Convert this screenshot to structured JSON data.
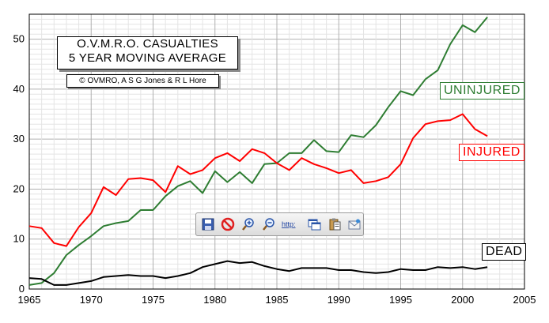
{
  "chart_data": {
    "type": "line",
    "title": "O.V.M.R.O. CASUALTIES",
    "subtitle": "5 YEAR MOVING AVERAGE",
    "copyright": "© OVMRO, A S G Jones & R L Hore",
    "xlim": [
      1965,
      2005
    ],
    "ylim": [
      0,
      55
    ],
    "x_ticks": [
      1965,
      1970,
      1975,
      1980,
      1985,
      1990,
      1995,
      2000,
      2005
    ],
    "y_ticks": [
      0,
      10,
      20,
      30,
      40,
      50
    ],
    "grid": true,
    "x": [
      1965,
      1966,
      1967,
      1968,
      1969,
      1970,
      1971,
      1972,
      1973,
      1974,
      1975,
      1976,
      1977,
      1978,
      1979,
      1980,
      1981,
      1982,
      1983,
      1984,
      1985,
      1986,
      1987,
      1988,
      1989,
      1990,
      1991,
      1992,
      1993,
      1994,
      1995,
      1996,
      1997,
      1998,
      1999,
      2000,
      2001,
      2002
    ],
    "series": [
      {
        "name": "UNINJURED",
        "color": "#2e7d32",
        "values": [
          0.8,
          1.2,
          3.2,
          6.8,
          8.8,
          10.6,
          12.6,
          13.2,
          13.6,
          15.8,
          15.8,
          18.6,
          20.6,
          21.6,
          19.2,
          23.6,
          21.4,
          23.4,
          21.2,
          25.0,
          25.2,
          27.2,
          27.2,
          29.8,
          27.6,
          27.4,
          30.8,
          30.4,
          32.8,
          36.4,
          39.6,
          38.8,
          42.0,
          43.8,
          49.0,
          52.8,
          51.4,
          54.4
        ]
      },
      {
        "name": "INJURED",
        "color": "#ff0000",
        "values": [
          12.6,
          12.2,
          9.2,
          8.6,
          12.4,
          15.2,
          20.4,
          18.8,
          22.0,
          22.2,
          21.8,
          19.4,
          24.6,
          23.0,
          23.8,
          26.2,
          27.2,
          25.6,
          28.0,
          27.2,
          25.2,
          23.8,
          26.2,
          25.0,
          24.2,
          23.2,
          23.8,
          21.2,
          21.6,
          22.4,
          25.0,
          30.2,
          33.0,
          33.6,
          33.8,
          35.0,
          32.0,
          30.6
        ]
      },
      {
        "name": "DEAD",
        "color": "#000000",
        "values": [
          2.2,
          2.0,
          0.8,
          0.8,
          1.2,
          1.6,
          2.4,
          2.6,
          2.8,
          2.6,
          2.6,
          2.2,
          2.6,
          3.2,
          4.4,
          5.0,
          5.6,
          5.2,
          5.4,
          4.6,
          4.0,
          3.6,
          4.2,
          4.2,
          4.2,
          3.8,
          3.8,
          3.4,
          3.2,
          3.4,
          4.0,
          3.8,
          3.8,
          4.4,
          4.2,
          4.4,
          4.0,
          4.4
        ]
      }
    ]
  },
  "toolbar": {
    "items": [
      {
        "icon": "save-icon",
        "title": "Save"
      },
      {
        "icon": "cancel-icon",
        "title": "Cancel"
      },
      {
        "icon": "zoom-in-icon",
        "title": "Zoom in"
      },
      {
        "icon": "zoom-out-icon",
        "title": "Zoom out"
      },
      {
        "icon": "http-icon",
        "title": "http:",
        "text": "http:"
      },
      {
        "icon": "window-icon",
        "title": "Window"
      },
      {
        "icon": "clipboard-icon",
        "title": "Clipboard"
      },
      {
        "icon": "mail-icon",
        "title": "Mail"
      }
    ]
  }
}
